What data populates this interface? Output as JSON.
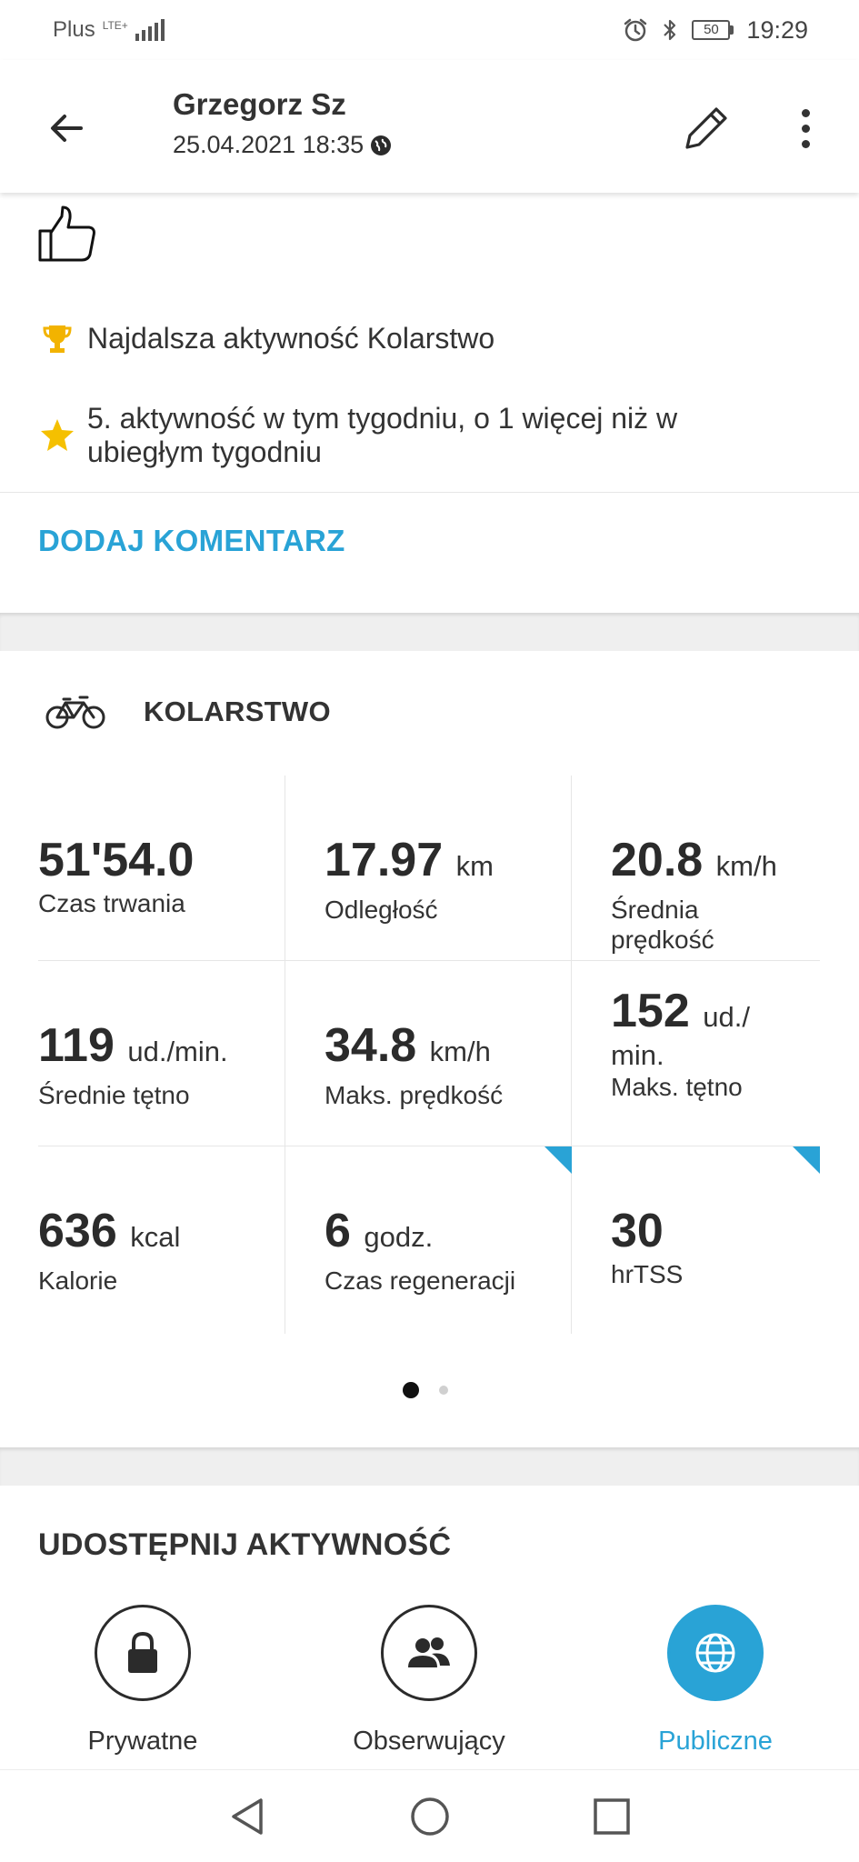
{
  "status_bar": {
    "carrier": "Plus",
    "network": "LTE+",
    "battery": "50",
    "time": "19:29"
  },
  "header": {
    "user_name": "Grzegorz Sz",
    "datetime": "25.04.2021 18:35",
    "icons": [
      "arrow-left-icon",
      "globe-icon",
      "pencil-icon",
      "more-vertical-icon"
    ]
  },
  "achievements": [
    {
      "icon": "trophy-icon",
      "color": "#f2b300",
      "text": "Najdalsza aktywność Kolarstwo"
    },
    {
      "icon": "star-icon",
      "color": "#f5c000",
      "text_line1": "5. aktywność w tym tygodniu, o 1 więcej niż w",
      "text_line2": "ubiegłym tygodniu"
    }
  ],
  "add_comment_label": "DODAJ KOMENTARZ",
  "sport": {
    "icon": "bicycle-icon",
    "title": "KOLARSTWO"
  },
  "stats": [
    {
      "value": "51'54.0",
      "unit": "",
      "label": "Czas trwania"
    },
    {
      "value": "17.97",
      "unit": "km",
      "label": "Odległość"
    },
    {
      "value": "20.8",
      "unit": "km/h",
      "label_line1": "Średnia",
      "label_line2": "prędkość"
    },
    {
      "value": "119",
      "unit": "ud./min.",
      "label": "Średnie tętno"
    },
    {
      "value": "34.8",
      "unit": "km/h",
      "label": "Maks. prędkość"
    },
    {
      "value": "152",
      "unit_line1": "ud./",
      "unit_line2": "min.",
      "label": "Maks. tętno"
    },
    {
      "value": "636",
      "unit": "kcal",
      "label": "Kalorie"
    },
    {
      "value": "6",
      "unit": "godz.",
      "label": "Czas regeneracji"
    },
    {
      "value": "30",
      "unit": "",
      "label": "hrTSS"
    }
  ],
  "pagination": {
    "current": 1,
    "total": 2
  },
  "share": {
    "title": "UDOSTĘPNIJ AKTYWNOŚĆ",
    "options": [
      {
        "icon": "lock-icon",
        "label": "Prywatne",
        "selected": false
      },
      {
        "icon": "people-icon",
        "label": "Obserwujący",
        "selected": false
      },
      {
        "icon": "globe-icon",
        "label": "Publiczne",
        "selected": true
      }
    ]
  },
  "colors": {
    "accent": "#29a3d6",
    "text": "#2b2b2b",
    "separator": "#efefef"
  },
  "nav_icons": [
    "nav-back-icon",
    "nav-home-icon",
    "nav-recents-icon"
  ]
}
